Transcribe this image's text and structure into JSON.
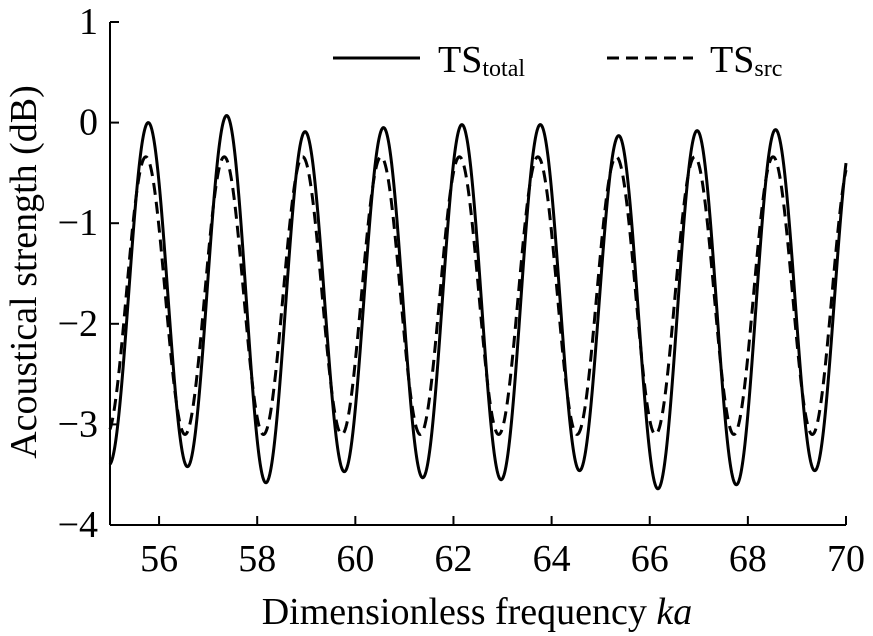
{
  "chart_data": {
    "type": "line",
    "xlabel_main": "Dimensionless frequency ",
    "xlabel_italic": "ka",
    "ylabel": "Acoustical strength (dB)",
    "xlim": [
      55,
      70
    ],
    "ylim": [
      -4,
      1
    ],
    "xticks": [
      56,
      58,
      60,
      62,
      64,
      66,
      68,
      70
    ],
    "yticks": [
      1,
      0,
      -1,
      -2,
      -3,
      -4
    ],
    "ytick_labels": [
      "1",
      "0",
      "−1",
      "−2",
      "−3",
      "−4"
    ],
    "legend_position": "top",
    "series": [
      {
        "name": "TS",
        "name_sub": "total",
        "style": "solid",
        "color": "#000000",
        "period": 1.598,
        "peak_x": 55.78,
        "peaks": [
          0.0,
          0.07,
          -0.09,
          -0.05,
          -0.02,
          -0.02,
          -0.13,
          -0.08,
          -0.07
        ],
        "troughs": [
          -3.4,
          -3.42,
          -3.58,
          -3.47,
          -3.53,
          -3.55,
          -3.46,
          -3.64,
          -3.6,
          -3.46
        ]
      },
      {
        "name": "TS",
        "name_sub": "src",
        "style": "dashed",
        "color": "#000000",
        "period": 1.598,
        "peak_x": 55.73,
        "peaks": [
          -0.34,
          -0.34,
          -0.34,
          -0.34,
          -0.34,
          -0.34,
          -0.34,
          -0.34,
          -0.34
        ],
        "troughs": [
          -3.1,
          -3.1,
          -3.1,
          -3.1,
          -3.1,
          -3.1,
          -3.1,
          -3.1,
          -3.1,
          -3.1
        ]
      }
    ]
  }
}
